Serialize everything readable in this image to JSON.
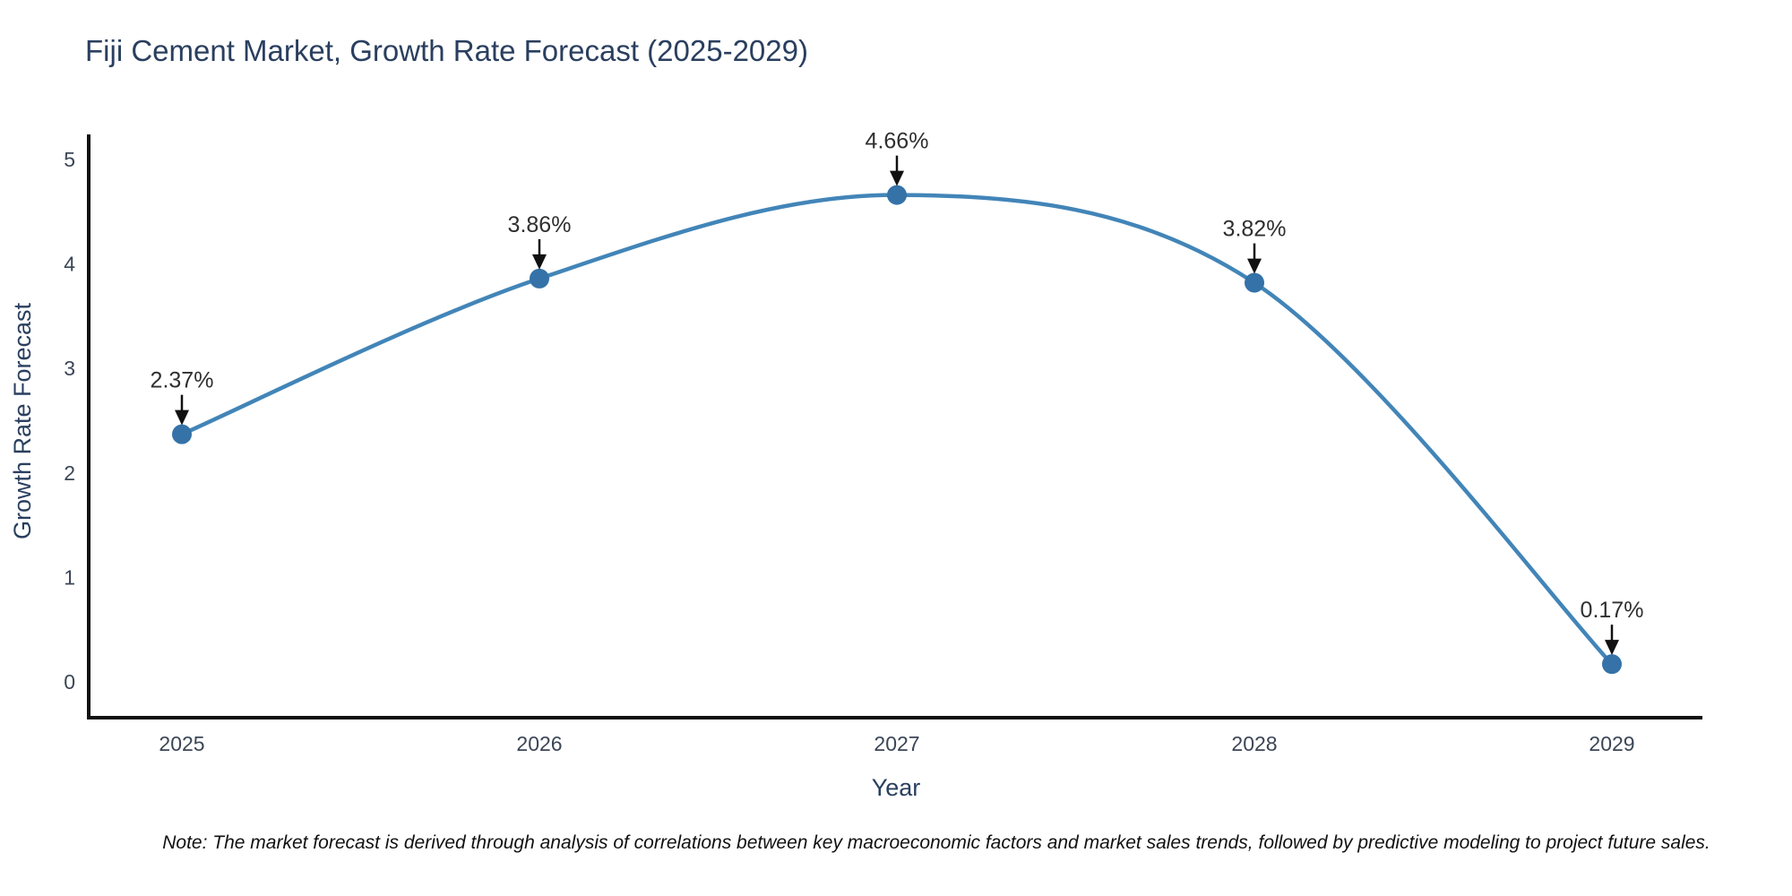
{
  "figure": {
    "note": "Note: The market forecast is derived through analysis of correlations between key macroeconomic factors and market sales trends, followed by predictive modeling to project future sales."
  },
  "chart_data": {
    "type": "line",
    "title": "Fiji Cement Market, Growth Rate Forecast (2025-2029)",
    "xlabel": "Year",
    "ylabel": "Growth Rate Forecast",
    "x": [
      2025,
      2026,
      2027,
      2028,
      2029
    ],
    "values": [
      2.37,
      3.86,
      4.66,
      3.82,
      0.17
    ],
    "point_labels": [
      "2.37%",
      "3.86%",
      "4.66%",
      "3.82%",
      "0.17%"
    ],
    "ylim": [
      0,
      5
    ],
    "yticks": [
      0,
      1,
      2,
      3,
      4,
      5
    ],
    "grid": false,
    "legend": false,
    "smooth_curve": true,
    "colors": {
      "line": "#4285b8",
      "marker": "#3472a8",
      "axis": "#111111",
      "arrow": "#111111",
      "title_text": "#2a3f5f",
      "axis_title_text": "#2a3f5f",
      "tick_text": "#3b4656",
      "annotation_text": "#2f2f2f",
      "note_text": "#111111",
      "background": "#ffffff"
    }
  }
}
